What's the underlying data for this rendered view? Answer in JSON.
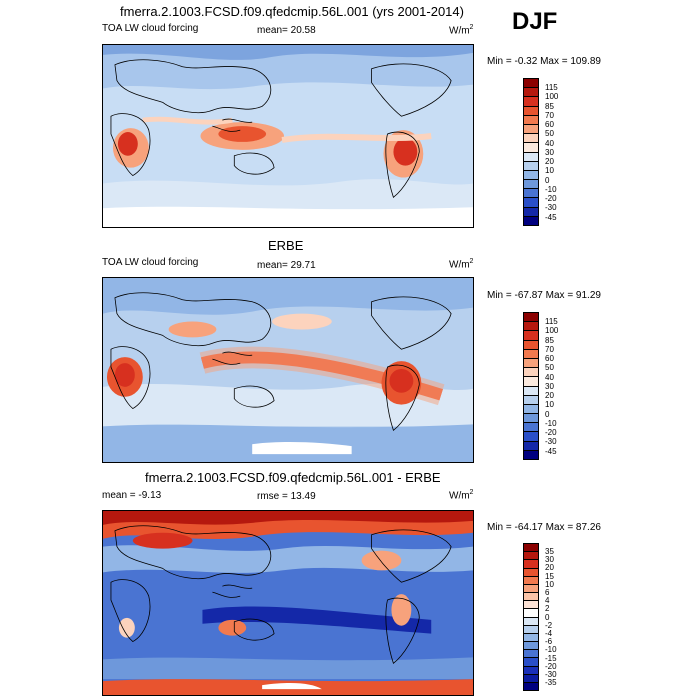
{
  "season": "DJF",
  "units": "W/m",
  "units_sup": "2",
  "panels": [
    {
      "title": "fmerra.2.1003.FCSD.f09.qfedcmip.56L.001 (yrs 2001-2014)",
      "left_label": "TOA LW cloud forcing",
      "center_label": "mean=  20.58",
      "minmax": "Min =  -0.32 Max = 109.89",
      "colorbar_labels": [
        "115",
        "100",
        "85",
        "70",
        "60",
        "50",
        "40",
        "30",
        "20",
        "10",
        "0",
        "-10",
        "-20",
        "-30",
        "-45"
      ],
      "colors": [
        "#8b0000",
        "#b5180e",
        "#d7301f",
        "#e8542f",
        "#f27a4f",
        "#f7a27c",
        "#fcd3bd",
        "#fbeadf",
        "#dbe8f6",
        "#b7d0ee",
        "#92b6e6",
        "#6e98db",
        "#4a74d2",
        "#2a4fc8",
        "#1428a8",
        "#00007f"
      ]
    },
    {
      "title": "ERBE",
      "left_label": "TOA LW cloud forcing",
      "center_label": "mean=  29.71",
      "minmax": "Min = -67.87 Max =  91.29",
      "colorbar_labels": [
        "115",
        "100",
        "85",
        "70",
        "60",
        "50",
        "40",
        "30",
        "20",
        "10",
        "0",
        "-10",
        "-20",
        "-30",
        "-45"
      ],
      "colors": [
        "#8b0000",
        "#b5180e",
        "#d7301f",
        "#e8542f",
        "#f27a4f",
        "#f7a27c",
        "#fcd3bd",
        "#fbeadf",
        "#dbe8f6",
        "#b7d0ee",
        "#92b6e6",
        "#6e98db",
        "#4a74d2",
        "#2a4fc8",
        "#1428a8",
        "#00007f"
      ]
    },
    {
      "title": "fmerra.2.1003.FCSD.f09.qfedcmip.56L.001 - ERBE",
      "left_label": "mean =  -9.13",
      "center_label": "rmse =  13.49",
      "minmax": "Min = -64.17 Max =  87.26",
      "colorbar_labels": [
        "35",
        "30",
        "20",
        "15",
        "10",
        "6",
        "4",
        "2",
        "0",
        "-2",
        "-4",
        "-6",
        "-10",
        "-15",
        "-20",
        "-30",
        "-35"
      ],
      "colors": [
        "#8b0000",
        "#b5180e",
        "#d7301f",
        "#e8542f",
        "#f27a4f",
        "#f7a27c",
        "#fbc4a8",
        "#fde3d6",
        "#ffffff",
        "#dbe8f6",
        "#b7d0ee",
        "#92b6e6",
        "#6e98db",
        "#4a74d2",
        "#2a4fc8",
        "#1a30b8",
        "#0c1ca0",
        "#00007f"
      ]
    }
  ]
}
